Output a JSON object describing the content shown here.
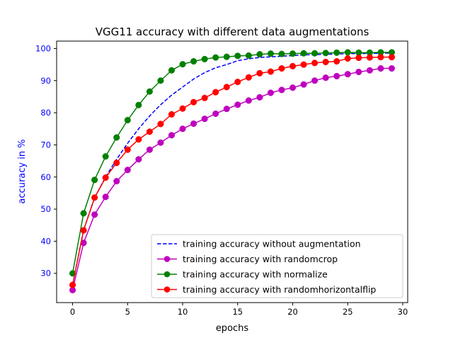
{
  "chart_data": {
    "type": "line",
    "title": "VGG11 accuracy with different data augmentations",
    "xlabel": "epochs",
    "ylabel": "accuracy in %",
    "xlim": [
      -1.45,
      30.45
    ],
    "ylim": [
      20.9,
      102.3
    ],
    "xticks": [
      0,
      5,
      10,
      15,
      20,
      25,
      30
    ],
    "yticks": [
      30,
      40,
      50,
      60,
      70,
      80,
      90,
      100
    ],
    "ytick_color": "#0000ff",
    "ylabel_color": "#0000ff",
    "grid": false,
    "legend_position": "lower-right",
    "x": [
      0,
      1,
      2,
      3,
      4,
      5,
      6,
      7,
      8,
      9,
      10,
      11,
      12,
      13,
      14,
      15,
      16,
      17,
      18,
      19,
      20,
      21,
      22,
      23,
      24,
      25,
      26,
      27,
      28,
      29
    ],
    "series": [
      {
        "name": "training accuracy without augmentation",
        "color": "#0000ff",
        "linestyle": "dashed",
        "marker": "none",
        "values": [
          26.5,
          43.5,
          53.5,
          60,
          65.5,
          70.5,
          75,
          79,
          82.5,
          85.5,
          88,
          90.5,
          92.5,
          94,
          95,
          96.2,
          96.8,
          97.2,
          97.4,
          97.6,
          97.8,
          98,
          98.1,
          98.2,
          98.3,
          98.4,
          98.4,
          98.5,
          98.5,
          98.6
        ]
      },
      {
        "name": "training accuracy with randomcrop",
        "color": "#bf00bf",
        "linestyle": "solid",
        "marker": "circle",
        "values": [
          24.8,
          39.5,
          48.3,
          53.8,
          58.7,
          62.2,
          65.5,
          68.5,
          70.7,
          73,
          75,
          76.6,
          78.1,
          79.7,
          81.2,
          82.5,
          83.8,
          84.8,
          86.2,
          87.1,
          87.8,
          88.8,
          90,
          90.9,
          91.4,
          92,
          92.7,
          93.2,
          93.8,
          93.8
        ]
      },
      {
        "name": "training accuracy with normalize",
        "color": "#008000",
        "linestyle": "solid",
        "marker": "circle",
        "values": [
          30,
          48.7,
          59.1,
          66.4,
          72.3,
          77.7,
          82.4,
          86.6,
          90,
          93.2,
          95.1,
          96,
          96.7,
          97.2,
          97.4,
          97.7,
          97.8,
          98.2,
          98.4,
          98.3,
          98.4,
          98.5,
          98.5,
          98.6,
          98.7,
          98.8,
          98.7,
          98.7,
          98.8,
          98.8
        ]
      },
      {
        "name": "training accuracy with randomhorizontalflip",
        "color": "#ff0000",
        "linestyle": "solid",
        "marker": "circle",
        "values": [
          26.4,
          43.4,
          53.6,
          59.8,
          64.4,
          68.5,
          71.7,
          74.1,
          76.5,
          79.5,
          81.3,
          83.3,
          84.6,
          86.4,
          88,
          89.6,
          91,
          92.3,
          92.8,
          93.8,
          94.5,
          95,
          95.5,
          95.8,
          96,
          96.9,
          97.1,
          97.2,
          97.3,
          97.3
        ]
      }
    ]
  }
}
